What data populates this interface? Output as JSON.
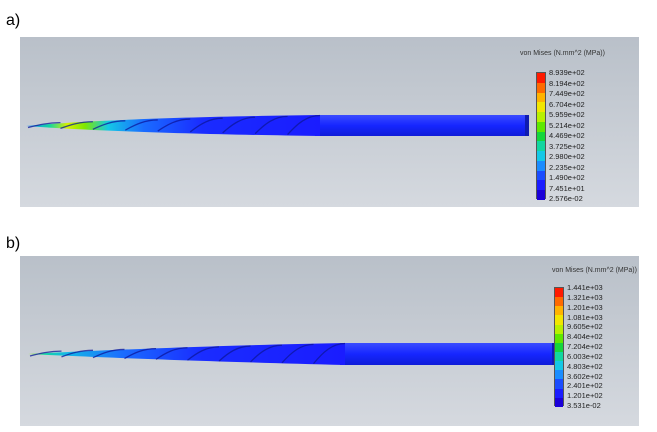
{
  "panels": [
    {
      "label": "a)",
      "legend_title": "von Mises (N.mm^2 (MPa))",
      "ticks": [
        "8.939e+02",
        "8.194e+02",
        "7.449e+02",
        "6.704e+02",
        "5.959e+02",
        "5.214e+02",
        "4.469e+02",
        "3.725e+02",
        "2.980e+02",
        "2.235e+02",
        "1.490e+02",
        "7.451e+01",
        "2.576e-02"
      ]
    },
    {
      "label": "b)",
      "legend_title": "von Mises (N.mm^2 (MPa))",
      "ticks": [
        "1.441e+03",
        "1.321e+03",
        "1.201e+03",
        "1.081e+03",
        "9.605e+02",
        "8.404e+02",
        "7.204e+02",
        "6.003e+02",
        "4.803e+02",
        "3.602e+02",
        "2.401e+02",
        "1.201e+02",
        "3.531e-02"
      ]
    }
  ],
  "colors": {
    "viewport_top": "#b9c0c9",
    "viewport_bottom": "#d5d9df",
    "shaft": "#1a2cff",
    "colormap": [
      "#ff1a00",
      "#ff6a00",
      "#ffb300",
      "#f2e600",
      "#b8f000",
      "#5ee800",
      "#14d63c",
      "#12d6a0",
      "#14c8e6",
      "#1a8cff",
      "#1a4cff",
      "#1a1cff",
      "#1a00d8"
    ]
  }
}
